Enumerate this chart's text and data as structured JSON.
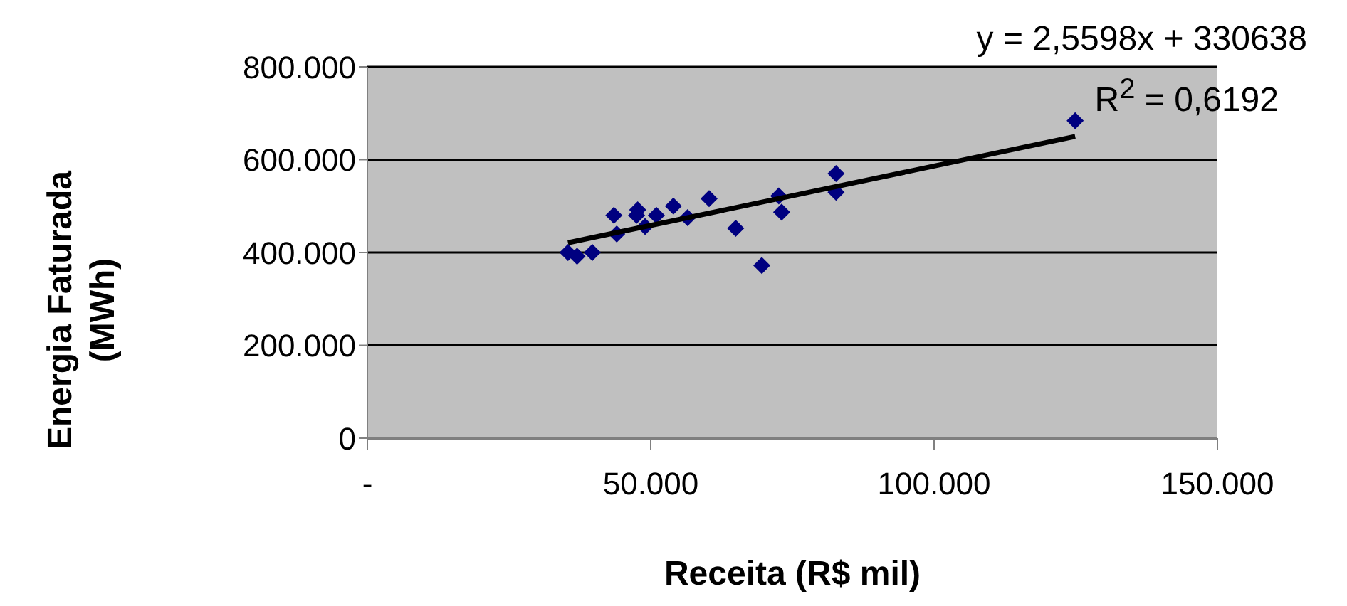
{
  "chart_data": {
    "type": "scatter",
    "xlabel": "Receita (R$ mil)",
    "ylabel": "Energia Faturada (MWh)",
    "annotations": [
      "y = 2,5598x + 330638",
      "R$^{2}$ = 0,6192"
    ],
    "xlim": [
      0,
      150000
    ],
    "xticks": [
      {
        "value": 0,
        "label": "-"
      },
      {
        "value": 50000,
        "label": "50.000"
      },
      {
        "value": 100000,
        "label": "100.000"
      },
      {
        "value": 150000,
        "label": "150.000"
      }
    ],
    "ylim": [
      0,
      800000
    ],
    "yticks": [
      0,
      {
        "value": 200000,
        "label": "200.000"
      },
      {
        "value": 400000,
        "label": "400.000"
      },
      {
        "value": 600000,
        "label": "600.000"
      },
      {
        "value": 800000,
        "label": "800.000"
      }
    ],
    "grid": "y",
    "legend": false,
    "marker": "diamond",
    "series": [
      {
        "color": "#000080",
        "x": [
          35400,
          37000,
          39700,
          43500,
          44000,
          47700,
          47500,
          49000,
          51000,
          54000,
          56500,
          60300,
          65000,
          69600,
          72600,
          73100,
          82700,
          82700,
          124900
        ],
        "values": [
          400000,
          392000,
          400000,
          480000,
          440000,
          492000,
          480000,
          456000,
          480000,
          500000,
          475000,
          516000,
          452000,
          372000,
          522000,
          487000,
          570000,
          530000,
          684000
        ]
      },
      {
        "type": "line",
        "color": "#000000",
        "marker": "none",
        "line_style": "solid",
        "x": [
          35400,
          124900
        ],
        "values": [
          421000,
          650000
        ]
      }
    ]
  }
}
